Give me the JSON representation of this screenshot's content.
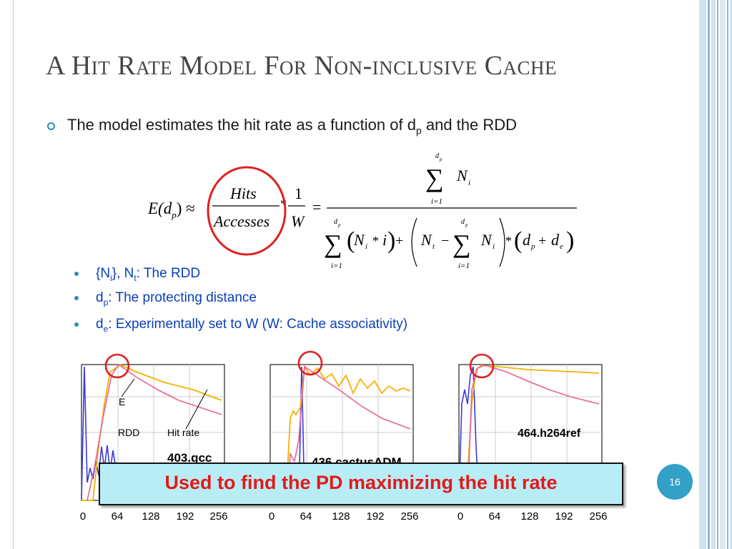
{
  "slide": {
    "title": "A Hit Rate Model For Non-inclusive Cache",
    "page_number": "16"
  },
  "bullets": {
    "main_pre": "The model estimates the hit rate as a function of d",
    "main_sub": "p",
    "main_post": " and the RDD",
    "sub": [
      {
        "pre": "{N",
        "sub1": "i",
        "mid": "}, N",
        "sub2": "t",
        "post": ": The RDD"
      },
      {
        "pre": "d",
        "sub1": "p",
        "mid": "",
        "sub2": "",
        "post": ": The protecting distance"
      },
      {
        "pre": "d",
        "sub1": "e",
        "mid": "",
        "sub2": "",
        "post": ": Experimentally set to W (W: Cache associativity)"
      }
    ]
  },
  "formula": {
    "lhs": "E(d",
    "lhs_sub": "p",
    "hits": "Hits",
    "accesses": "Accesses",
    "one": "1",
    "w": "W",
    "sum_upper": "d",
    "sum_upper_sub": "p",
    "sum_lower": "i=1",
    "n": "N",
    "i_sub": "i",
    "t_sub": "t",
    "dp": "d",
    "de": "d"
  },
  "charts": {
    "x_ticks": [
      "0",
      "64",
      "128",
      "192",
      "256"
    ],
    "labels": {
      "chart1_benchmark": "403.gcc",
      "chart2_benchmark": "436.cactusADM",
      "chart3_benchmark": "464.h264ref",
      "e_label": "E",
      "rdd_label": "RDD",
      "hit_rate_label": "Hit rate"
    },
    "colors": {
      "e": "#f2b400",
      "rdd": "#3a3ad8",
      "hit_rate": "#e8609a",
      "circle": "#e02020"
    }
  },
  "callout": {
    "text": "Used to find the PD maximizing the hit rate"
  }
}
